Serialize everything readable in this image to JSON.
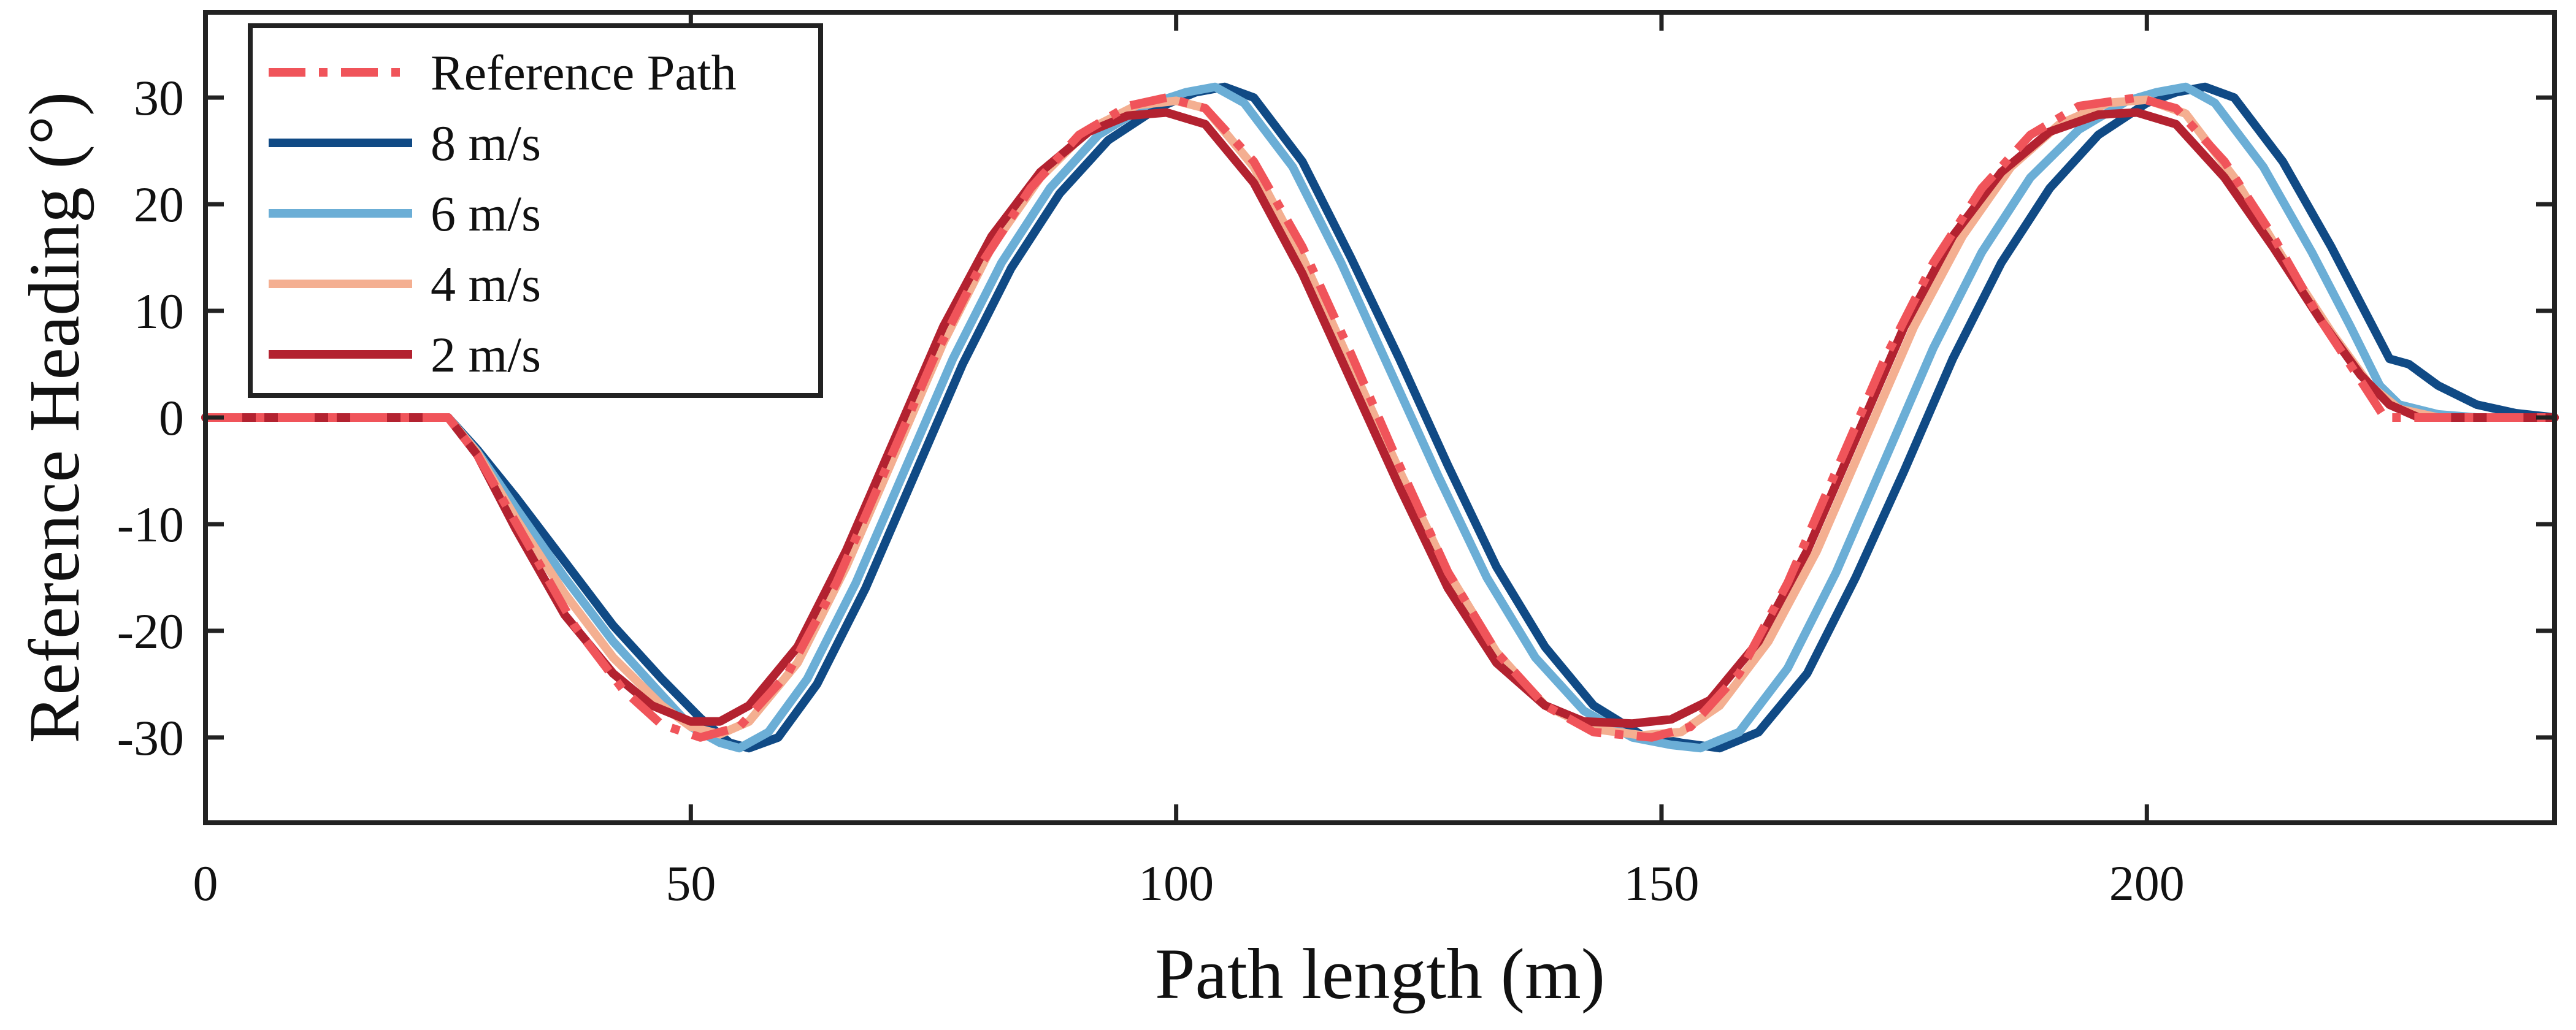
{
  "chart_data": {
    "type": "line",
    "title": "",
    "xlabel": "Path length (m)",
    "ylabel": "Reference Heading (°)",
    "xlim": [
      0,
      242
    ],
    "ylim": [
      -38,
      38
    ],
    "xticks": [
      0,
      50,
      100,
      150,
      200
    ],
    "yticks": [
      -30,
      -20,
      -10,
      0,
      10,
      20,
      30
    ],
    "xtick_labels": [
      "0",
      "50",
      "100",
      "150",
      "200"
    ],
    "ytick_labels": [
      "-30",
      "-20",
      "-10",
      "0",
      "10",
      "20",
      "30"
    ],
    "grid": false,
    "legend_position": "top-left",
    "series": [
      {
        "name": "Reference Path",
        "color": "#F0545A",
        "dash": "dash-dot",
        "points": [
          [
            0,
            0
          ],
          [
            25,
            0
          ],
          [
            28,
            -3.5
          ],
          [
            33,
            -11.5
          ],
          [
            38,
            -19.5
          ],
          [
            43,
            -25.5
          ],
          [
            47,
            -28.8
          ],
          [
            51,
            -30
          ],
          [
            55,
            -29
          ],
          [
            60,
            -24
          ],
          [
            65,
            -15.5
          ],
          [
            70,
            -5
          ],
          [
            75,
            5.5
          ],
          [
            80,
            14.5
          ],
          [
            85,
            21.5
          ],
          [
            90,
            26.5
          ],
          [
            95,
            29.2
          ],
          [
            99,
            30
          ],
          [
            103,
            29
          ],
          [
            108,
            24
          ],
          [
            113,
            16
          ],
          [
            118,
            6
          ],
          [
            123,
            -4.5
          ],
          [
            128,
            -14.5
          ],
          [
            133,
            -22
          ],
          [
            138,
            -27
          ],
          [
            143,
            -29.5
          ],
          [
            149,
            -30
          ],
          [
            153,
            -29
          ],
          [
            158,
            -24
          ],
          [
            163,
            -15.5
          ],
          [
            168,
            -5
          ],
          [
            173,
            5.5
          ],
          [
            178,
            14.5
          ],
          [
            183,
            21.5
          ],
          [
            188,
            26.5
          ],
          [
            193,
            29.2
          ],
          [
            199,
            30
          ],
          [
            203,
            29
          ],
          [
            208,
            24
          ],
          [
            213,
            17
          ],
          [
            218,
            9
          ],
          [
            222,
            3.5
          ],
          [
            224.5,
            0
          ],
          [
            242,
            0
          ]
        ]
      },
      {
        "name": "8 m/s",
        "color": "#104A85",
        "dash": "solid",
        "points": [
          [
            0,
            0
          ],
          [
            25,
            0
          ],
          [
            28,
            -3
          ],
          [
            32,
            -7.5
          ],
          [
            37,
            -13.5
          ],
          [
            42,
            -19.5
          ],
          [
            47,
            -24.5
          ],
          [
            51,
            -28.2
          ],
          [
            54,
            -30.5
          ],
          [
            56,
            -31
          ],
          [
            59,
            -30
          ],
          [
            63,
            -25
          ],
          [
            68,
            -16
          ],
          [
            73,
            -5.5
          ],
          [
            78,
            5
          ],
          [
            83,
            14
          ],
          [
            88,
            21
          ],
          [
            93,
            26
          ],
          [
            98,
            29
          ],
          [
            102,
            30.5
          ],
          [
            105,
            31
          ],
          [
            108,
            30
          ],
          [
            113,
            24
          ],
          [
            118,
            15
          ],
          [
            123,
            5.5
          ],
          [
            128,
            -4.5
          ],
          [
            133,
            -14
          ],
          [
            138,
            -21.5
          ],
          [
            143,
            -27
          ],
          [
            148,
            -29.8
          ],
          [
            152,
            -30.5
          ],
          [
            156,
            -31
          ],
          [
            160,
            -29.5
          ],
          [
            165,
            -24
          ],
          [
            170,
            -15
          ],
          [
            175,
            -5
          ],
          [
            180,
            5.5
          ],
          [
            185,
            14.5
          ],
          [
            190,
            21.5
          ],
          [
            195,
            26.5
          ],
          [
            200,
            29.5
          ],
          [
            203,
            30.5
          ],
          [
            206,
            31
          ],
          [
            209,
            30
          ],
          [
            214,
            24
          ],
          [
            219,
            16
          ],
          [
            223,
            9
          ],
          [
            225,
            5.5
          ],
          [
            227,
            5
          ],
          [
            230,
            3
          ],
          [
            234,
            1.2
          ],
          [
            238,
            0.4
          ],
          [
            242,
            0
          ]
        ]
      },
      {
        "name": "6 m/s",
        "color": "#6BAED6",
        "dash": "solid",
        "points": [
          [
            0,
            0
          ],
          [
            25,
            0
          ],
          [
            28,
            -3.2
          ],
          [
            32,
            -8.5
          ],
          [
            37,
            -15
          ],
          [
            42,
            -21
          ],
          [
            47,
            -26
          ],
          [
            50,
            -29
          ],
          [
            53,
            -30.5
          ],
          [
            55,
            -31
          ],
          [
            58,
            -29.5
          ],
          [
            62,
            -24.5
          ],
          [
            67,
            -15.5
          ],
          [
            72,
            -5
          ],
          [
            77,
            5.5
          ],
          [
            82,
            14.5
          ],
          [
            87,
            21.5
          ],
          [
            92,
            26.5
          ],
          [
            97,
            29.3
          ],
          [
            101,
            30.5
          ],
          [
            104,
            31
          ],
          [
            107,
            29.5
          ],
          [
            112,
            23.5
          ],
          [
            117,
            14.5
          ],
          [
            122,
            4.5
          ],
          [
            127,
            -5.5
          ],
          [
            132,
            -15
          ],
          [
            137,
            -22.5
          ],
          [
            142,
            -27.5
          ],
          [
            147,
            -30
          ],
          [
            151,
            -30.7
          ],
          [
            154,
            -31
          ],
          [
            158,
            -29.5
          ],
          [
            163,
            -23.5
          ],
          [
            168,
            -14.5
          ],
          [
            173,
            -4
          ],
          [
            178,
            6.5
          ],
          [
            183,
            15.5
          ],
          [
            188,
            22.5
          ],
          [
            193,
            27
          ],
          [
            198,
            29.7
          ],
          [
            201,
            30.5
          ],
          [
            204,
            31
          ],
          [
            207,
            29.5
          ],
          [
            212,
            23.5
          ],
          [
            217,
            15.5
          ],
          [
            221,
            8.5
          ],
          [
            224,
            3
          ],
          [
            226,
            1.2
          ],
          [
            230,
            0.3
          ],
          [
            234,
            0
          ],
          [
            242,
            0
          ]
        ]
      },
      {
        "name": "4 m/s",
        "color": "#F4AF91",
        "dash": "solid",
        "points": [
          [
            0,
            0
          ],
          [
            25,
            0
          ],
          [
            28,
            -3.3
          ],
          [
            32,
            -9.5
          ],
          [
            37,
            -16.5
          ],
          [
            42,
            -22.5
          ],
          [
            47,
            -27
          ],
          [
            50,
            -29
          ],
          [
            53,
            -29.7
          ],
          [
            56,
            -28.5
          ],
          [
            61,
            -23
          ],
          [
            66,
            -14
          ],
          [
            71,
            -3.5
          ],
          [
            76,
            7
          ],
          [
            81,
            16
          ],
          [
            86,
            22.5
          ],
          [
            91,
            27
          ],
          [
            96,
            29.3
          ],
          [
            100,
            29.7
          ],
          [
            103,
            29
          ],
          [
            108,
            23.5
          ],
          [
            113,
            15
          ],
          [
            118,
            5
          ],
          [
            123,
            -5
          ],
          [
            128,
            -14.5
          ],
          [
            133,
            -22
          ],
          [
            138,
            -27
          ],
          [
            143,
            -29.2
          ],
          [
            148,
            -29.8
          ],
          [
            152,
            -29.5
          ],
          [
            156,
            -27
          ],
          [
            161,
            -21
          ],
          [
            166,
            -12.5
          ],
          [
            171,
            -2
          ],
          [
            176,
            8.5
          ],
          [
            181,
            17
          ],
          [
            186,
            23.5
          ],
          [
            191,
            27.5
          ],
          [
            196,
            29.5
          ],
          [
            200,
            29.8
          ],
          [
            204,
            28.5
          ],
          [
            209,
            22.5
          ],
          [
            214,
            15
          ],
          [
            219,
            8
          ],
          [
            223,
            3
          ],
          [
            226,
            0.8
          ],
          [
            230,
            0
          ],
          [
            242,
            0
          ]
        ]
      },
      {
        "name": "2 m/s",
        "color": "#B32230",
        "dash": "solid",
        "points": [
          [
            0,
            0
          ],
          [
            25,
            0
          ],
          [
            28,
            -3.5
          ],
          [
            32,
            -10.5
          ],
          [
            37,
            -18.5
          ],
          [
            42,
            -24
          ],
          [
            46,
            -27
          ],
          [
            50,
            -28.5
          ],
          [
            53,
            -28.5
          ],
          [
            56,
            -27
          ],
          [
            61,
            -21.5
          ],
          [
            66,
            -12.5
          ],
          [
            71,
            -2
          ],
          [
            76,
            8.5
          ],
          [
            81,
            17
          ],
          [
            86,
            23
          ],
          [
            91,
            26.8
          ],
          [
            95,
            28.3
          ],
          [
            99,
            28.6
          ],
          [
            103,
            27.5
          ],
          [
            108,
            22
          ],
          [
            113,
            13.5
          ],
          [
            118,
            3.5
          ],
          [
            123,
            -6.5
          ],
          [
            128,
            -16
          ],
          [
            133,
            -23
          ],
          [
            138,
            -27
          ],
          [
            142,
            -28.5
          ],
          [
            147,
            -28.7
          ],
          [
            151,
            -28.3
          ],
          [
            155,
            -26.5
          ],
          [
            160,
            -21
          ],
          [
            165,
            -12.5
          ],
          [
            170,
            -2
          ],
          [
            175,
            8.5
          ],
          [
            180,
            17
          ],
          [
            185,
            23
          ],
          [
            190,
            26.8
          ],
          [
            195,
            28.4
          ],
          [
            199,
            28.6
          ],
          [
            203,
            27.5
          ],
          [
            208,
            22.5
          ],
          [
            213,
            16
          ],
          [
            218,
            9
          ],
          [
            222,
            4
          ],
          [
            225,
            1.2
          ],
          [
            228,
            0
          ],
          [
            242,
            0
          ]
        ]
      }
    ]
  }
}
